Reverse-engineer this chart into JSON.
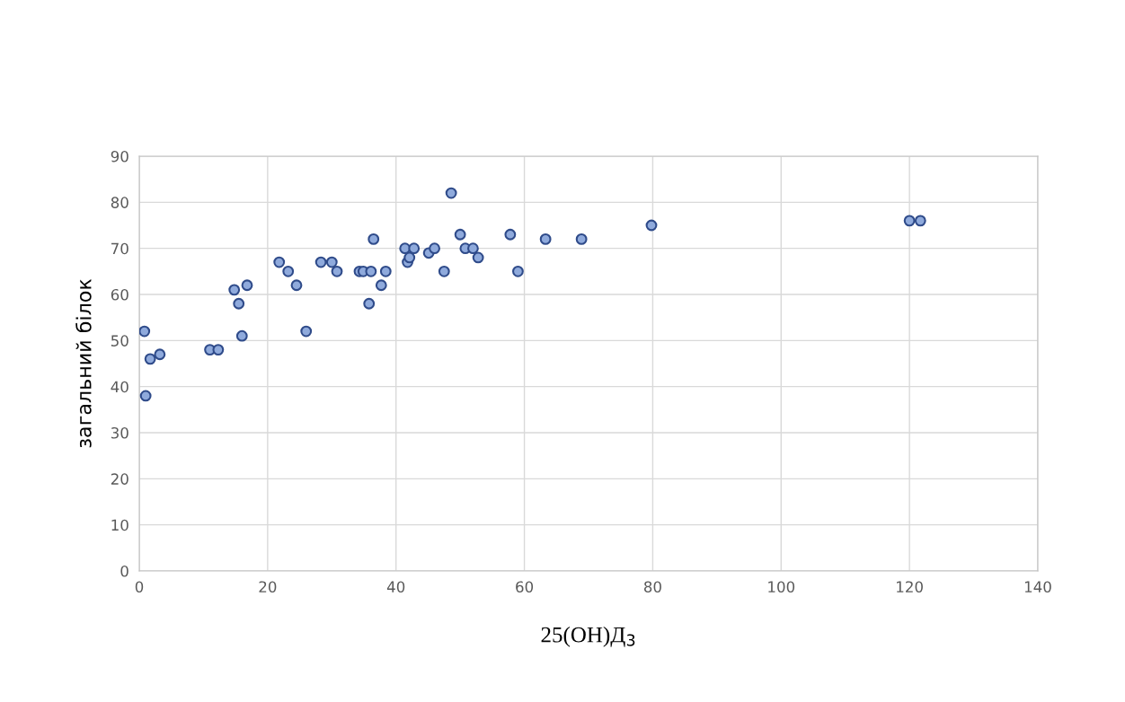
{
  "chart_data": {
    "type": "scatter",
    "xlabel": "25(OH)Д$_{3}$",
    "ylabel": "загальний білок",
    "x": [
      0.8,
      1,
      1.7,
      3.2,
      11,
      12.3,
      14.8,
      15.5,
      16,
      16.8,
      21.8,
      23.2,
      24.5,
      26,
      28.3,
      30,
      30.8,
      34.3,
      34.9,
      35.8,
      36.1,
      36.5,
      37.7,
      38.4,
      41.4,
      41.8,
      42.1,
      42.8,
      45.1,
      46,
      47.5,
      48.6,
      50,
      50.8,
      52,
      52.8,
      57.8,
      59,
      63.3,
      68.9,
      79.8,
      120,
      121.7
    ],
    "values": [
      52,
      38,
      46,
      47,
      48,
      48,
      61,
      58,
      51,
      62,
      67,
      65,
      62,
      52,
      67,
      67,
      65,
      65,
      65,
      58,
      65,
      72,
      62,
      65,
      70,
      67,
      68,
      70,
      69,
      70,
      65,
      82,
      73,
      70,
      70,
      68,
      73,
      65,
      72,
      72,
      75,
      76,
      76
    ],
    "color": "#8faadc",
    "marker": "circle",
    "xlim": [
      0,
      140
    ],
    "xticks": [
      0,
      20,
      40,
      60,
      80,
      100,
      120,
      140
    ],
    "ylim": [
      0,
      90
    ],
    "yticks": [
      0,
      10,
      20,
      30,
      40,
      50,
      60,
      70,
      80,
      90
    ],
    "grid": true
  }
}
